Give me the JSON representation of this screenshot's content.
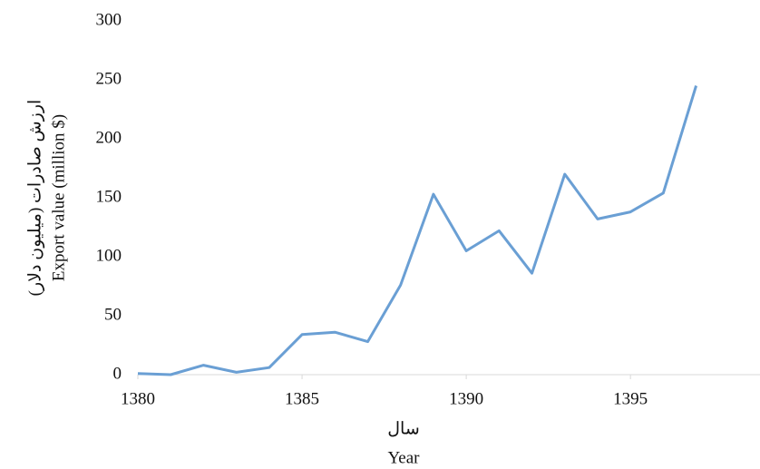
{
  "chart_data": {
    "type": "line",
    "x": [
      1380,
      1381,
      1382,
      1383,
      1384,
      1385,
      1386,
      1387,
      1388,
      1389,
      1390,
      1391,
      1392,
      1393,
      1394,
      1395,
      1396,
      1397
    ],
    "series": [
      {
        "color": "#6a9fd4",
        "values": [
          1,
          0,
          8,
          2,
          6,
          34,
          36,
          28,
          76,
          153,
          105,
          122,
          86,
          170,
          132,
          138,
          154,
          245
        ]
      }
    ],
    "xlim": [
      1380,
      1399
    ],
    "xticks": [
      1380,
      1385,
      1390,
      1395
    ],
    "ylim": [
      0,
      300
    ],
    "yticks": [
      0,
      50,
      100,
      150,
      200,
      250,
      300
    ],
    "y_label": [
      "ارزش صادرات (میلیون دلار)",
      "Export value (million $)"
    ],
    "x_label": [
      "سال",
      "Year"
    ]
  }
}
